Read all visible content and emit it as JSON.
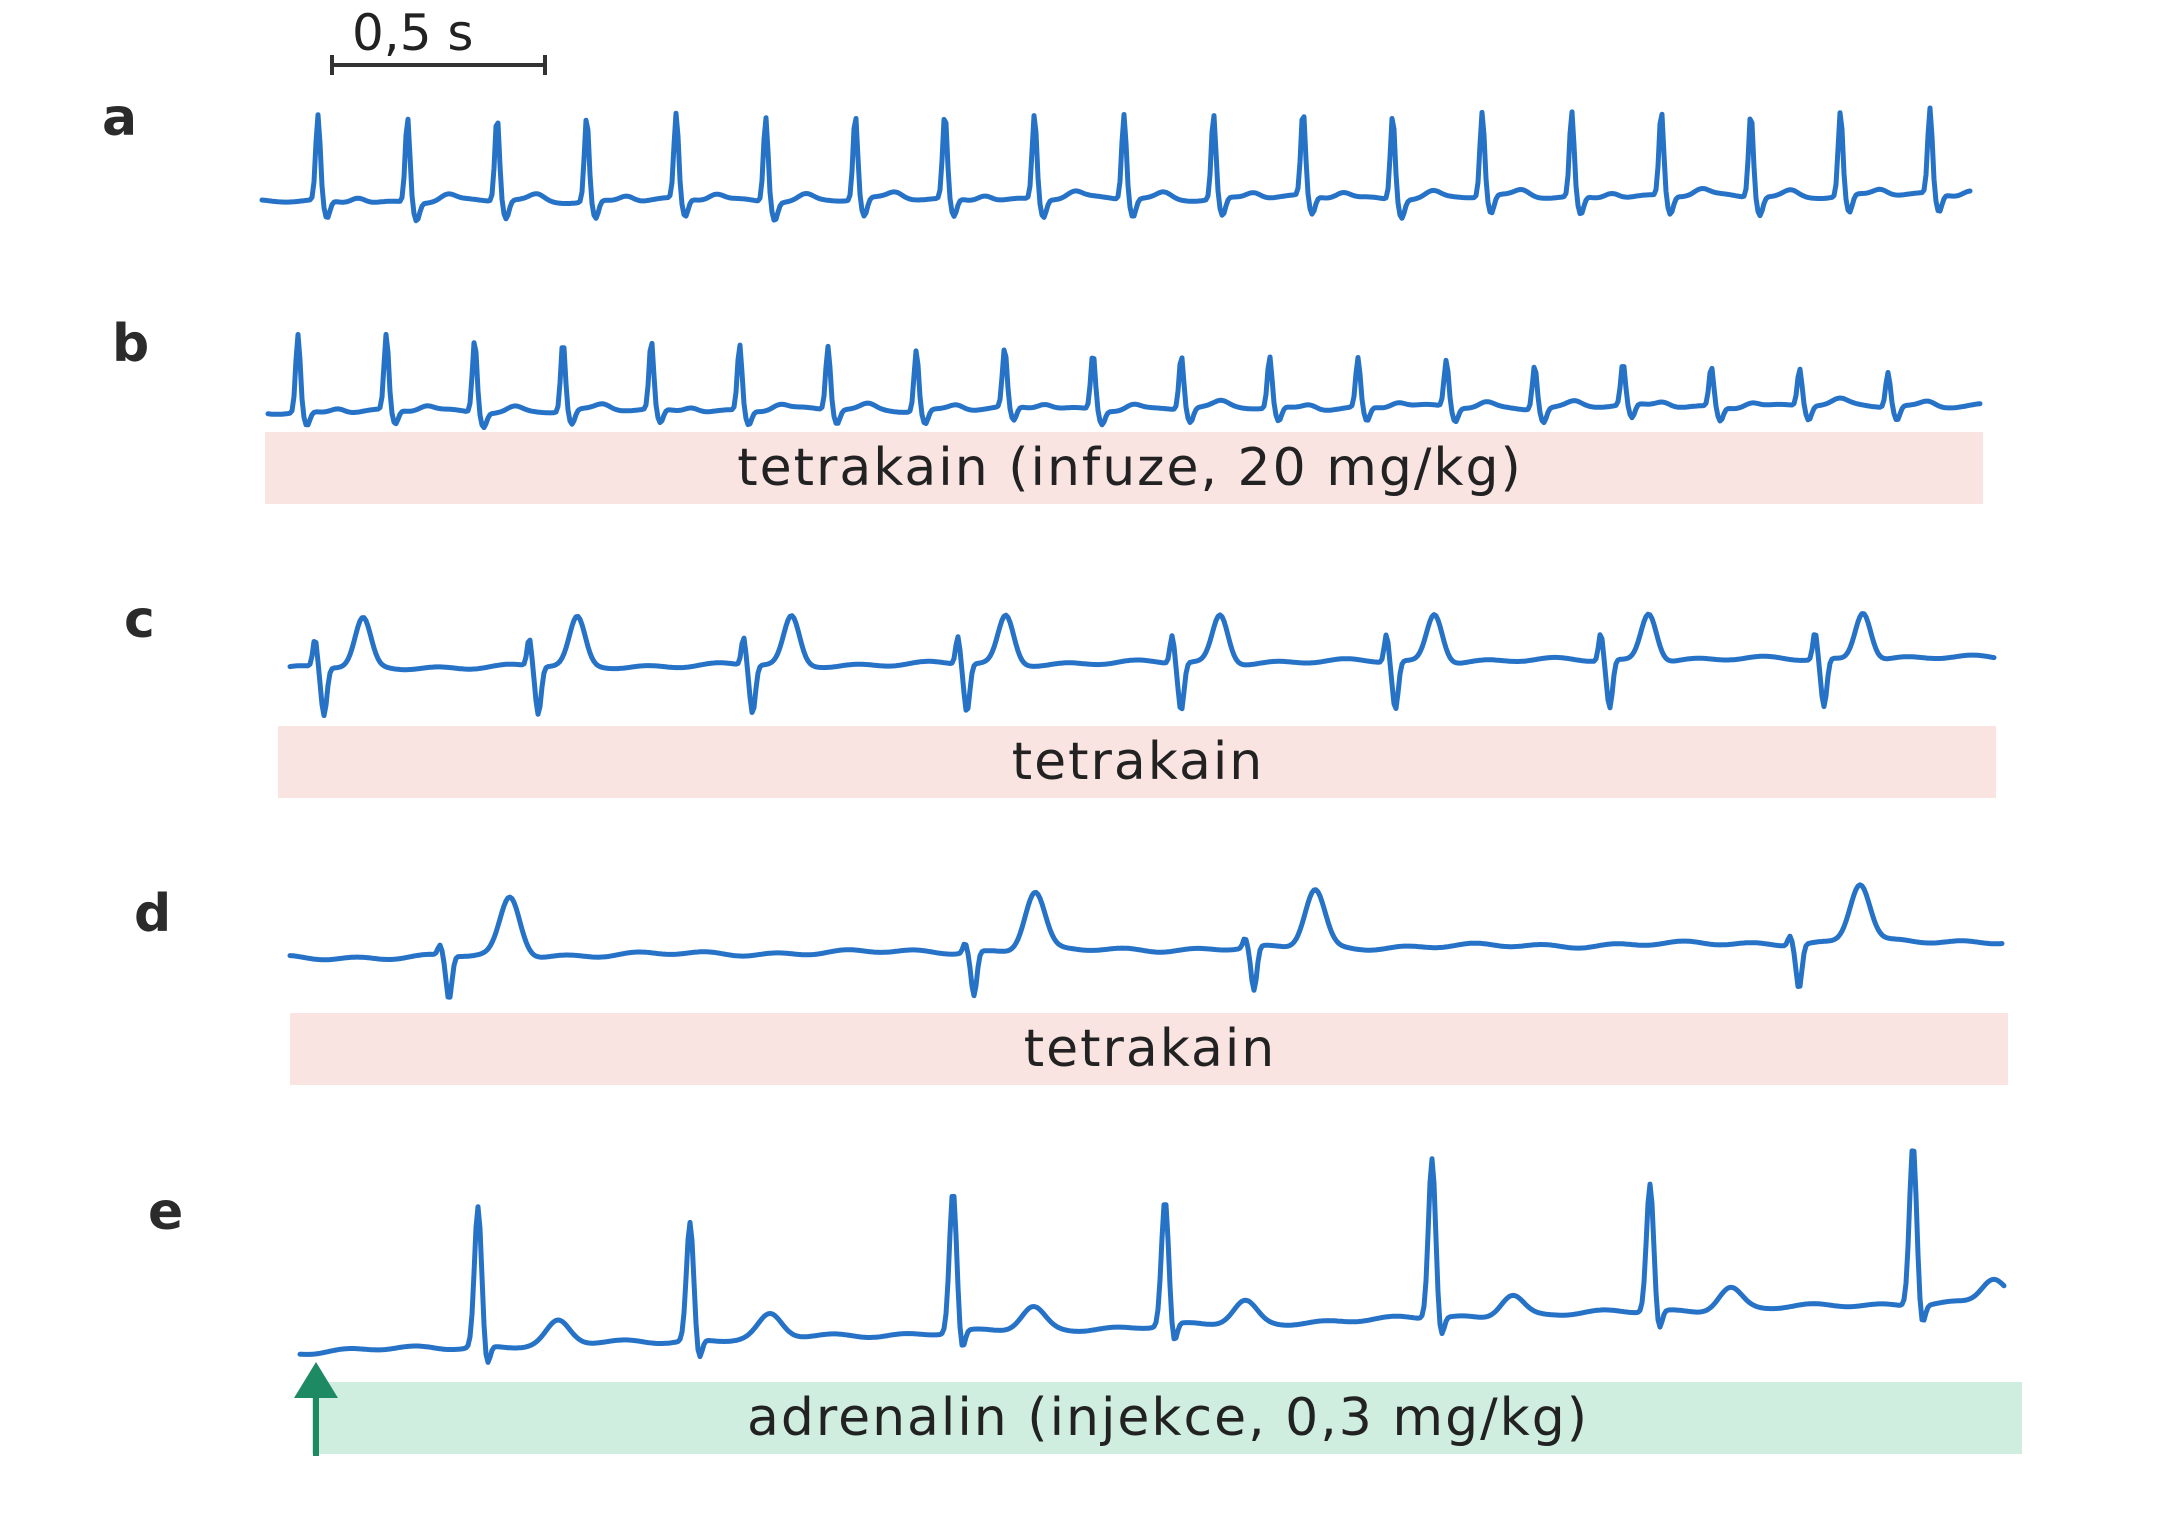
{
  "scale_bar": {
    "label": "0,5 s"
  },
  "colors": {
    "trace": "#2672c6",
    "band_tetrakain": "#f9e4e2",
    "band_adrenalin": "#cfeee0",
    "arrow": "#1e8a63",
    "text": "#222222"
  },
  "panels": [
    {
      "letter": "a",
      "band_label": ""
    },
    {
      "letter": "b",
      "band_label": "tetrakain (infuze, 20 mg/kg)"
    },
    {
      "letter": "c",
      "band_label": "tetrakain"
    },
    {
      "letter": "d",
      "band_label": "tetrakain"
    },
    {
      "letter": "e",
      "band_label": "adrenalin (injekce, 0,3 mg/kg)"
    }
  ],
  "marker_icon": "up-arrow-icon"
}
